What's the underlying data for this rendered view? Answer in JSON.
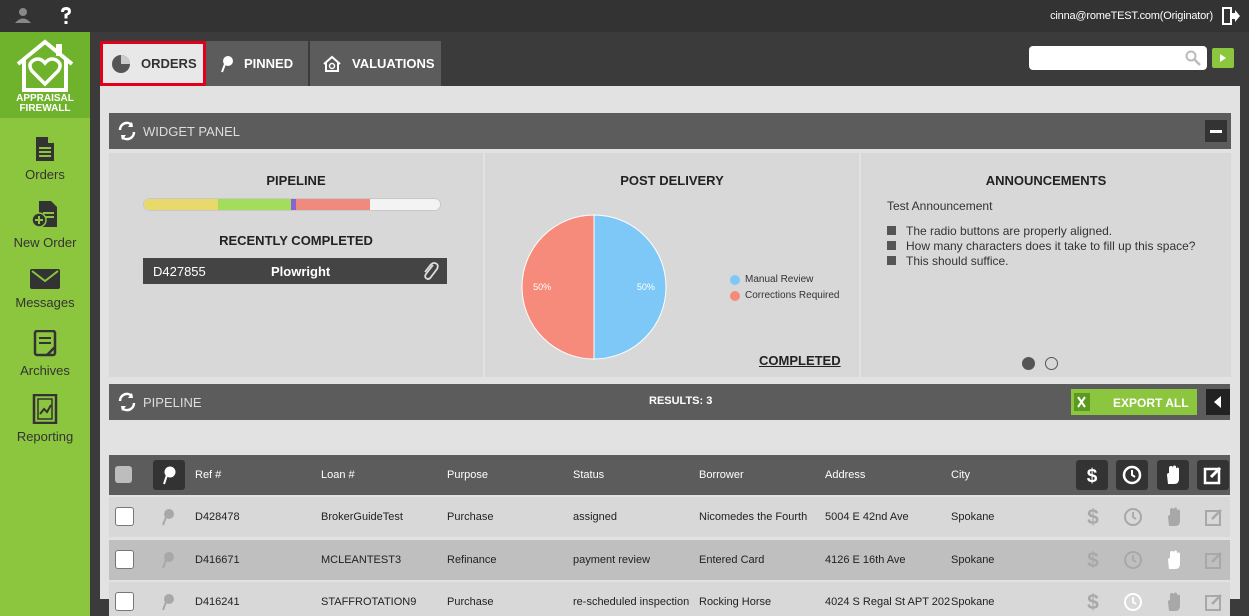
{
  "top_bar": {
    "user_email": "cinna@romeTEST.com(Originator)",
    "icons": [
      "user-icon",
      "help-icon",
      "logout-icon"
    ]
  },
  "sidebar": {
    "logo_text_line1": "APPRAISAL",
    "logo_text_line2": "FIREWALL",
    "items": [
      {
        "label": "Orders",
        "icon": "document-icon"
      },
      {
        "label": "New Order",
        "icon": "new-document-icon"
      },
      {
        "label": "Messages",
        "icon": "envelope-icon"
      },
      {
        "label": "Archives",
        "icon": "archive-icon"
      },
      {
        "label": "Reporting",
        "icon": "report-icon"
      }
    ]
  },
  "tabs": [
    {
      "label": "ORDERS",
      "icon": "pie-icon",
      "active": true
    },
    {
      "label": "PINNED",
      "icon": "pin-icon",
      "active": false
    },
    {
      "label": "VALUATIONS",
      "icon": "house-icon",
      "active": false
    }
  ],
  "search": {
    "placeholder": "",
    "value": ""
  },
  "widget_panel": {
    "title": "WIDGET PANEL",
    "pipeline": {
      "title": "PIPELINE",
      "segments": [
        {
          "color": "#e8d96a",
          "fraction": 0.25
        },
        {
          "color": "#a3dd5c",
          "fraction": 0.245
        },
        {
          "color": "#8a63d2",
          "fraction": 0.02
        },
        {
          "color": "#f08a7e",
          "fraction": 0.25
        },
        {
          "color": "#f3f3f3",
          "fraction": 0.235
        }
      ],
      "recently_completed_title": "RECENTLY COMPLETED",
      "recently_completed": {
        "ref": "D427855",
        "name": "Plowright",
        "icon": "paperclip-icon"
      }
    },
    "post_delivery": {
      "title": "POST DELIVERY",
      "completed_link": "COMPLETED",
      "chart_data": {
        "type": "pie",
        "categories": [
          "Manual Review",
          "Corrections Required"
        ],
        "values": [
          50,
          50
        ],
        "labels": [
          "50%",
          "50%"
        ],
        "colors": [
          "#7ec8f8",
          "#f68a7b"
        ],
        "legend": "right"
      }
    },
    "announcements": {
      "title": "ANNOUNCEMENTS",
      "subtitle": "Test Announcement",
      "items": [
        "The radio buttons are properly aligned.",
        "How many characters does it take to fill up this space?",
        "This should suffice."
      ],
      "carousel": {
        "count": 2,
        "active_index": 0
      }
    }
  },
  "pipeline": {
    "title": "PIPELINE",
    "results": "RESULTS: 3",
    "export_label": "EXPORT ALL",
    "columns": [
      "Ref #",
      "Loan #",
      "Purpose",
      "Status",
      "Borrower",
      "Address",
      "City"
    ],
    "header_icons": [
      "dollar-icon",
      "clock-icon",
      "hand-icon",
      "edit-icon"
    ],
    "rows": [
      {
        "ref": "D428478",
        "loan": "BrokerGuideTest",
        "purpose": "Purchase",
        "status": "assigned",
        "borrower": "Nicomedes the Fourth",
        "address": "5004 E 42nd Ave",
        "city": "Spokane",
        "hand_active": false,
        "clock_active": false
      },
      {
        "ref": "D416671",
        "loan": "MCLEANTEST3",
        "purpose": "Refinance",
        "status": "payment review",
        "borrower": "Entered Card",
        "address": "4126 E 16th Ave",
        "city": "Spokane",
        "hand_active": true,
        "clock_active": false
      },
      {
        "ref": "D416241",
        "loan": "STAFFROTATION9",
        "purpose": "Purchase",
        "status": "re-scheduled inspection",
        "borrower": "Rocking Horse",
        "address": "4024 S Regal St APT 202",
        "city": "Spokane",
        "hand_active": false,
        "clock_active": true
      }
    ]
  },
  "colors": {
    "brand_green": "#8cc63f",
    "logo_green": "#6fb32c",
    "highlight_red": "#e0001a",
    "panel_gray": "#5c5c5c"
  }
}
